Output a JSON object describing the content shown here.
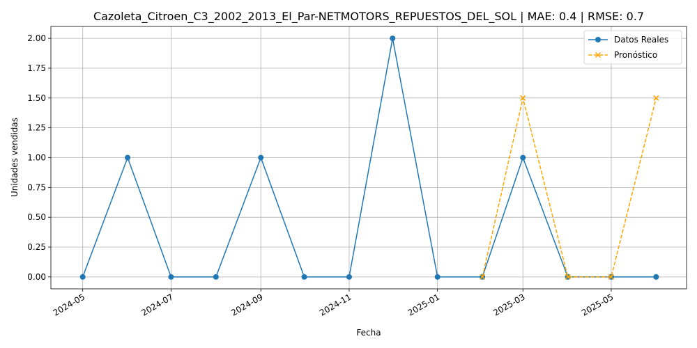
{
  "chart_data": {
    "type": "line",
    "title": "Cazoleta_Citroen_C3_2002_2013_El_Par-NETMOTORS_REPUESTOS_DEL_SOL | MAE: 0.4 | RMSE: 0.7",
    "xlabel": "Fecha",
    "ylabel": "Unidades vendidas",
    "ylim": [
      -0.1,
      2.1
    ],
    "xlim": [
      "2024-04-09",
      "2025-06-22"
    ],
    "grid": true,
    "legend_position": "top-right",
    "x_ticks": [
      "2024-05",
      "2024-07",
      "2024-09",
      "2024-11",
      "2025-01",
      "2025-03",
      "2025-05"
    ],
    "y_ticks": [
      "0.00",
      "0.25",
      "0.50",
      "0.75",
      "1.00",
      "1.25",
      "1.50",
      "1.75",
      "2.00"
    ],
    "series": [
      {
        "name": "Datos Reales",
        "color": "#1f77b4",
        "marker": "circle",
        "linestyle": "solid",
        "x": [
          "2024-05-01",
          "2024-06-01",
          "2024-07-01",
          "2024-08-01",
          "2024-09-01",
          "2024-10-01",
          "2024-11-01",
          "2024-12-01",
          "2025-01-01",
          "2025-02-01",
          "2025-03-01",
          "2025-04-01",
          "2025-05-01",
          "2025-06-01"
        ],
        "values": [
          0,
          1,
          0,
          0,
          1,
          0,
          0,
          2,
          0,
          0,
          1,
          0,
          0,
          0
        ]
      },
      {
        "name": "Pronóstico",
        "color": "#ffa500",
        "marker": "x",
        "linestyle": "dashed",
        "x": [
          "2025-02-01",
          "2025-03-01",
          "2025-04-01",
          "2025-05-01",
          "2025-06-01"
        ],
        "values": [
          0,
          1.5,
          0,
          0,
          1.5
        ]
      }
    ]
  }
}
